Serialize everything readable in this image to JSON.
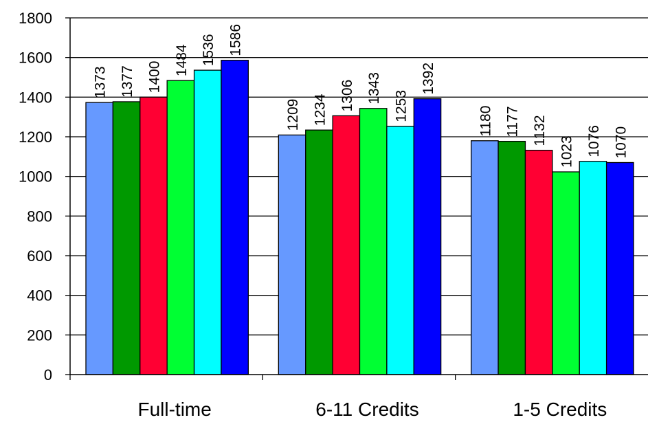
{
  "chart_data": {
    "type": "bar",
    "title": "",
    "xlabel": "",
    "ylabel": "",
    "categories": [
      "Full-time",
      "6-11 Credits",
      "1-5 Credits"
    ],
    "ylim": [
      0,
      1800
    ],
    "yticks": [
      0,
      200,
      400,
      600,
      800,
      1000,
      1200,
      1400,
      1600,
      1800
    ],
    "grid": true,
    "legend": "none",
    "series": [
      {
        "color": "#6699FF",
        "values": [
          1373,
          1209,
          1180
        ]
      },
      {
        "color": "#009900",
        "values": [
          1377,
          1234,
          1177
        ]
      },
      {
        "color": "#FF0033",
        "values": [
          1400,
          1306,
          1132
        ]
      },
      {
        "color": "#00FF33",
        "values": [
          1484,
          1343,
          1023
        ]
      },
      {
        "color": "#00FFFF",
        "values": [
          1536,
          1253,
          1076
        ]
      },
      {
        "color": "#0000FF",
        "values": [
          1586,
          1392,
          1070
        ]
      }
    ]
  }
}
